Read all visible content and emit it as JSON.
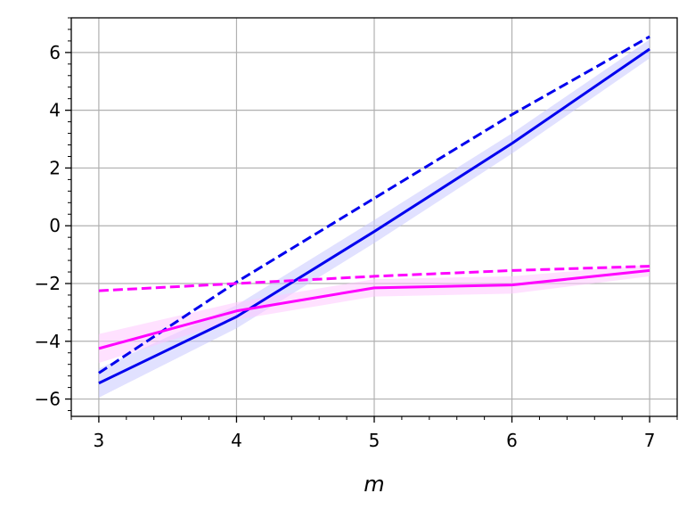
{
  "chart_data": {
    "type": "line",
    "title": "",
    "xlabel": "m",
    "ylabel": "",
    "xlim": [
      2.8,
      7.2
    ],
    "ylim": [
      -6.6,
      7.2
    ],
    "x_ticks": [
      3,
      4,
      5,
      6,
      7
    ],
    "x_tick_labels": [
      "3",
      "4",
      "5",
      "6",
      "7"
    ],
    "y_ticks": [
      -6,
      -4,
      -2,
      0,
      2,
      4,
      6
    ],
    "y_tick_labels": [
      "−6",
      "−4",
      "−2",
      "0",
      "2",
      "4",
      "6"
    ],
    "grid": true,
    "legend": "none",
    "x": [
      3,
      4,
      5,
      6,
      7
    ],
    "series": [
      {
        "color": "#0000ee",
        "style": "solid",
        "values": [
          -5.45,
          -3.15,
          -0.2,
          2.85,
          6.12
        ],
        "band_low": [
          -5.95,
          -3.55,
          -0.6,
          2.5,
          5.8
        ],
        "band_high": [
          -4.95,
          -2.75,
          0.2,
          3.2,
          6.45
        ],
        "band_color": "#c8c8ff"
      },
      {
        "color": "#0000ee",
        "style": "dashed",
        "values": [
          -5.1,
          -1.95,
          0.95,
          3.85,
          6.55
        ]
      },
      {
        "color": "#ff00ff",
        "style": "solid",
        "values": [
          -4.25,
          -2.95,
          -2.15,
          -2.05,
          -1.55
        ],
        "band_low": [
          -4.75,
          -3.25,
          -2.45,
          -2.35,
          -1.75
        ],
        "band_high": [
          -3.75,
          -2.65,
          -1.85,
          -1.75,
          -1.35
        ],
        "band_color": "#ffc8ff"
      },
      {
        "color": "#ff00ff",
        "style": "dashed",
        "values": [
          -2.25,
          -2.0,
          -1.75,
          -1.55,
          -1.4
        ]
      }
    ]
  }
}
